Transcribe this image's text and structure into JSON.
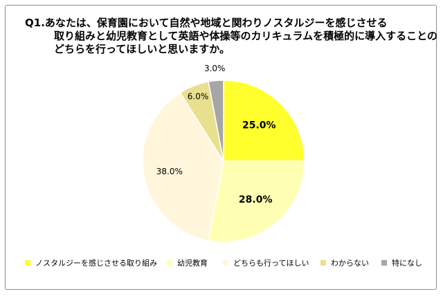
{
  "title_lines": [
    "Q1.あなたは、保育園において自然や地域と関わりノスタルジーを感じさせる",
    "取り組みと幼児教育として英語や体操等のカリキュラムを積極的に導入することの",
    "どちらを行ってほしいと思いますか。"
  ],
  "chart_data": {
    "type": "pie",
    "title": "Q1.あなたは、保育園において自然や地域と関わりノスタルジーを感じさせる取り組みと幼児教育として英語や体操等のカリキュラムを積極的に導入することのどちらを行ってほしいと思いますか。",
    "slices": [
      {
        "label": "ノスタルジーを感じさせる取り組み",
        "value": 25.0,
        "display": "25.0%",
        "color": "#ffff2e",
        "label_bold": true
      },
      {
        "label": "幼児教育",
        "value": 28.0,
        "display": "28.0%",
        "color": "#ffffb3",
        "label_bold": true
      },
      {
        "label": "どちらも行ってほしい",
        "value": 38.0,
        "display": "38.0%",
        "color": "#fff6dc",
        "label_bold": false
      },
      {
        "label": "わからない",
        "value": 6.0,
        "display": "6.0%",
        "color": "#e8e08e",
        "label_bold": false
      },
      {
        "label": "特になし",
        "value": 3.0,
        "display": "3.0%",
        "color": "#a6a6a6",
        "label_bold": false
      }
    ],
    "start": "top",
    "direction": "clockwise",
    "legend_position": "bottom"
  }
}
